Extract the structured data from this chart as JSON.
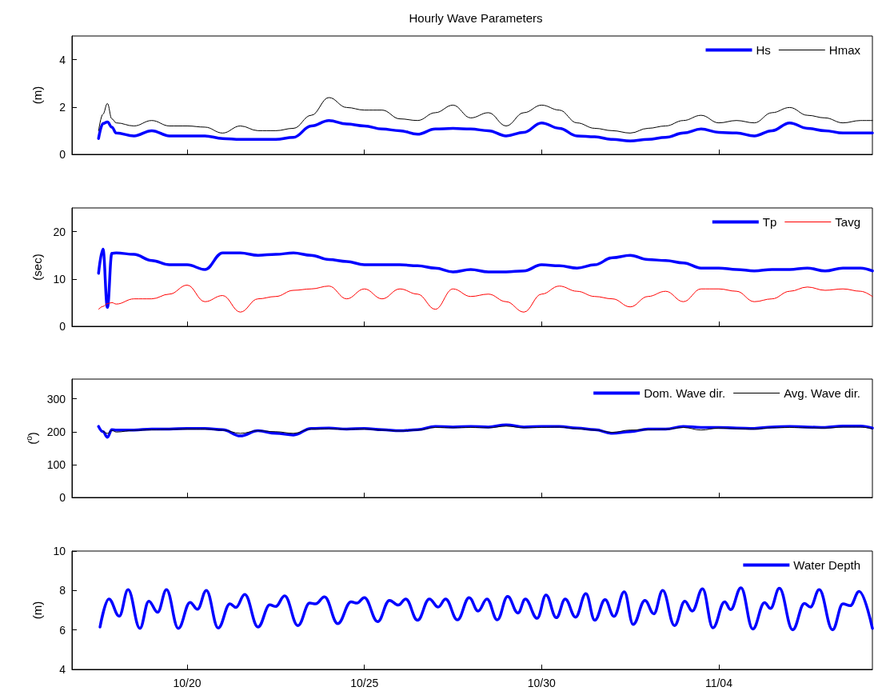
{
  "chart_data": [
    {
      "type": "line",
      "title": "Hourly Wave Parameters",
      "ylabel": "(m)",
      "legend": "top right",
      "tick_labels": "y",
      "xlim": [
        "--10-16T18:00",
        "--11-08T08:00"
      ],
      "xticks": [
        {
          "value": "--10-20",
          "label": "10/20"
        },
        {
          "value": "--10-25",
          "label": "10/25"
        },
        {
          "value": "--10-30",
          "label": "10/30"
        },
        {
          "value": "--11-04",
          "label": "11/04"
        }
      ],
      "ylim": [
        0,
        5
      ],
      "yticks": [
        0,
        2,
        4
      ],
      "x": [
        "--10-17T12:00",
        "--10-17T15:00",
        "--10-17T18:00",
        "--10-17T21:00",
        "--10-18T00:00",
        "--10-18T12:00",
        "--10-19T00:00",
        "--10-19T12:00",
        "--10-20T00:00",
        "--10-20T12:00",
        "--10-21T00:00",
        "--10-21T12:00",
        "--10-22T00:00",
        "--10-22T12:00",
        "--10-23T00:00",
        "--10-23T12:00",
        "--10-24T00:00",
        "--10-24T12:00",
        "--10-25T00:00",
        "--10-25T12:00",
        "--10-26T00:00",
        "--10-26T12:00",
        "--10-27T00:00",
        "--10-27T12:00",
        "--10-28T00:00",
        "--10-28T12:00",
        "--10-29T00:00",
        "--10-29T12:00",
        "--10-30T00:00",
        "--10-30T12:00",
        "--10-31T00:00",
        "--10-31T12:00",
        "--11-01T00:00",
        "--11-01T12:00",
        "--11-02T00:00",
        "--11-02T12:00",
        "--11-03T00:00",
        "--11-03T12:00",
        "--11-04T00:00",
        "--11-04T12:00",
        "--11-05T00:00",
        "--11-05T12:00",
        "--11-06T00:00",
        "--11-06T12:00",
        "--11-07T00:00",
        "--11-07T12:00",
        "--11-08T00:00",
        "--11-08T08:00"
      ],
      "series": [
        {
          "name": "Hs",
          "color": "#0000ff",
          "values": [
            0.67,
            1.3,
            1.37,
            1.15,
            0.9,
            0.78,
            1.0,
            0.78,
            0.78,
            0.78,
            0.67,
            0.63,
            0.63,
            0.63,
            0.72,
            1.2,
            1.43,
            1.28,
            1.2,
            1.07,
            1.0,
            0.85,
            1.07,
            1.1,
            1.07,
            1.0,
            0.78,
            0.93,
            1.33,
            1.1,
            0.78,
            0.74,
            0.63,
            0.57,
            0.63,
            0.72,
            0.9,
            1.07,
            0.93,
            0.9,
            0.78,
            1.0,
            1.33,
            1.1,
            1.0,
            0.9,
            0.9,
            0.9
          ]
        },
        {
          "name": "Hmax",
          "color": "#000000",
          "values": [
            1.0,
            1.7,
            2.15,
            1.5,
            1.33,
            1.2,
            1.43,
            1.2,
            1.2,
            1.15,
            0.9,
            1.2,
            1.0,
            1.0,
            1.1,
            1.65,
            2.4,
            1.98,
            1.87,
            1.87,
            1.5,
            1.43,
            1.76,
            2.08,
            1.54,
            1.76,
            1.2,
            1.76,
            2.08,
            1.87,
            1.33,
            1.1,
            1.0,
            0.9,
            1.1,
            1.2,
            1.43,
            1.65,
            1.33,
            1.43,
            1.33,
            1.76,
            1.98,
            1.65,
            1.54,
            1.33,
            1.43,
            1.43
          ]
        }
      ]
    },
    {
      "type": "line",
      "ylabel": "(sec)",
      "legend": "top right",
      "tick_labels": "y",
      "xlim": [
        "--10-16T18:00",
        "--11-08T08:00"
      ],
      "xticks": [
        {
          "value": "--10-20",
          "label": "10/20"
        },
        {
          "value": "--10-25",
          "label": "10/25"
        },
        {
          "value": "--10-30",
          "label": "10/30"
        },
        {
          "value": "--11-04",
          "label": "11/04"
        }
      ],
      "ylim": [
        0,
        25
      ],
      "yticks": [
        0,
        10,
        20
      ],
      "x": [
        "--10-17T12:00",
        "--10-17T15:00",
        "--10-17T18:00",
        "--10-17T21:00",
        "--10-18T00:00",
        "--10-18T12:00",
        "--10-19T00:00",
        "--10-19T12:00",
        "--10-20T00:00",
        "--10-20T12:00",
        "--10-21T00:00",
        "--10-21T12:00",
        "--10-22T00:00",
        "--10-22T12:00",
        "--10-23T00:00",
        "--10-23T12:00",
        "--10-24T00:00",
        "--10-24T12:00",
        "--10-25T00:00",
        "--10-25T12:00",
        "--10-26T00:00",
        "--10-26T12:00",
        "--10-27T00:00",
        "--10-27T12:00",
        "--10-28T00:00",
        "--10-28T12:00",
        "--10-29T00:00",
        "--10-29T12:00",
        "--10-30T00:00",
        "--10-30T12:00",
        "--10-31T00:00",
        "--10-31T12:00",
        "--11-01T00:00",
        "--11-01T12:00",
        "--11-02T00:00",
        "--11-02T12:00",
        "--11-03T00:00",
        "--11-03T12:00",
        "--11-04T00:00",
        "--11-04T12:00",
        "--11-05T00:00",
        "--11-05T12:00",
        "--11-06T00:00",
        "--11-06T12:00",
        "--11-07T00:00",
        "--11-07T12:00",
        "--11-08T00:00",
        "--11-08T08:00"
      ],
      "series": [
        {
          "name": "Tp",
          "color": "#0000ff",
          "values": [
            11.2,
            16.3,
            4.0,
            15.4,
            15.5,
            15.2,
            13.9,
            13.0,
            13.0,
            12.0,
            15.5,
            15.5,
            15.0,
            15.2,
            15.5,
            15.0,
            14.1,
            13.7,
            13.0,
            13.0,
            13.0,
            12.8,
            12.3,
            11.5,
            12.0,
            11.5,
            11.5,
            11.7,
            13.0,
            12.8,
            12.3,
            13.0,
            14.5,
            15.0,
            14.1,
            13.9,
            13.4,
            12.3,
            12.3,
            12.0,
            11.7,
            12.0,
            12.0,
            12.3,
            11.7,
            12.3,
            12.3,
            11.7
          ]
        },
        {
          "name": "Tavg",
          "color": "#ff0000",
          "values": [
            3.6,
            4.2,
            4.8,
            5.0,
            4.7,
            5.8,
            5.8,
            6.8,
            8.7,
            5.2,
            6.5,
            3.0,
            5.8,
            6.3,
            7.6,
            7.9,
            8.5,
            5.8,
            7.9,
            5.8,
            7.9,
            6.8,
            3.6,
            7.9,
            6.3,
            6.8,
            5.2,
            3.0,
            6.8,
            8.5,
            7.4,
            6.3,
            5.8,
            4.1,
            6.3,
            7.4,
            5.2,
            7.9,
            7.9,
            7.4,
            5.2,
            5.8,
            7.4,
            8.3,
            7.6,
            7.9,
            7.4,
            6.3
          ]
        }
      ]
    },
    {
      "type": "line",
      "ylabel": "($^{o}$)",
      "legend": "top right",
      "tick_labels": "y",
      "xlim": [
        "--10-16T18:00",
        "--11-08T08:00"
      ],
      "xticks": [
        {
          "value": "--10-20",
          "label": "10/20"
        },
        {
          "value": "--10-25",
          "label": "10/25"
        },
        {
          "value": "--10-30",
          "label": "10/30"
        },
        {
          "value": "--11-04",
          "label": "11/04"
        }
      ],
      "ylim": [
        0,
        360
      ],
      "yticks": [
        0,
        100,
        200,
        300
      ],
      "x": [
        "--10-17T12:00",
        "--10-17T15:00",
        "--10-17T18:00",
        "--10-17T21:00",
        "--10-18T00:00",
        "--10-18T12:00",
        "--10-19T00:00",
        "--10-19T12:00",
        "--10-20T00:00",
        "--10-20T12:00",
        "--10-21T00:00",
        "--10-21T12:00",
        "--10-22T00:00",
        "--10-22T12:00",
        "--10-23T00:00",
        "--10-23T12:00",
        "--10-24T00:00",
        "--10-24T12:00",
        "--10-25T00:00",
        "--10-25T12:00",
        "--10-26T00:00",
        "--10-26T12:00",
        "--10-27T00:00",
        "--10-27T12:00",
        "--10-28T00:00",
        "--10-28T12:00",
        "--10-29T00:00",
        "--10-29T12:00",
        "--10-30T00:00",
        "--10-30T12:00",
        "--10-31T00:00",
        "--10-31T12:00",
        "--11-01T00:00",
        "--11-01T12:00",
        "--11-02T00:00",
        "--11-02T12:00",
        "--11-03T00:00",
        "--11-03T12:00",
        "--11-04T00:00",
        "--11-04T12:00",
        "--11-05T00:00",
        "--11-05T12:00",
        "--11-06T00:00",
        "--11-06T12:00",
        "--11-07T00:00",
        "--11-07T12:00",
        "--11-08T00:00",
        "--11-08T08:00"
      ],
      "series": [
        {
          "name": "Dom. Wave dir.",
          "color": "#0000ff",
          "values": [
            216,
            200,
            183,
            206,
            205,
            205,
            208,
            208,
            210,
            210,
            206,
            187,
            203,
            195,
            190,
            210,
            211,
            208,
            210,
            206,
            203,
            206,
            216,
            214,
            216,
            214,
            221,
            214,
            216,
            216,
            211,
            206,
            195,
            200,
            208,
            208,
            216,
            213,
            213,
            211,
            210,
            214,
            216,
            214,
            213,
            217,
            217,
            211
          ]
        },
        {
          "name": "Avg. Wave dir.",
          "color": "#000000",
          "values": [
            null,
            202,
            195,
            204,
            199,
            204,
            206,
            207,
            208,
            208,
            205,
            195,
            203,
            200,
            195,
            208,
            209,
            207,
            208,
            205,
            202,
            205,
            213,
            212,
            213,
            212,
            217,
            212,
            213,
            214,
            209,
            205,
            198,
            205,
            206,
            207,
            213,
            205,
            211,
            209,
            208,
            212,
            213,
            212,
            211,
            214,
            214,
            209
          ]
        }
      ]
    },
    {
      "type": "line",
      "ylabel": "(m)",
      "legend": "top right",
      "xlim": [
        "--10-16T18:00",
        "--11-08T08:00"
      ],
      "xticks": [
        {
          "value": "--10-20",
          "label": "10/20"
        },
        {
          "value": "--10-25",
          "label": "10/25"
        },
        {
          "value": "--10-30",
          "label": "10/30"
        },
        {
          "value": "--11-04",
          "label": "11/04"
        }
      ],
      "ylim": [
        4,
        10
      ],
      "yticks": [
        4,
        6,
        8,
        10
      ],
      "x": [
        "--10-17T13:00",
        "--10-17T19:00",
        "--10-18T02:00",
        "--10-18T08:00",
        "--10-18T16:00",
        "--10-18T22:00",
        "--10-19T04:00",
        "--10-19T10:00",
        "--10-19T18:00",
        "--10-20T02:00",
        "--10-20T07:00",
        "--10-20T13:00",
        "--10-20T21:00",
        "--10-21T05:00",
        "--10-21T09:00",
        "--10-21T15:00",
        "--10-22T00:00",
        "--10-22T08:00",
        "--10-22T12:00",
        "--10-22T18:00",
        "--10-23T03:00",
        "--10-23T11:00",
        "--10-23T15:00",
        "--10-23T21:00",
        "--10-24T06:00",
        "--10-24T15:00",
        "--10-24T19:00",
        "--10-25T00:00",
        "--10-25T09:00",
        "--10-25T17:00",
        "--10-25T23:00",
        "--10-26T04:00",
        "--10-26T12:00",
        "--10-26T20:00",
        "--10-27T02:00",
        "--10-27T07:00",
        "--10-27T15:00",
        "--10-27T23:00",
        "--10-28T05:00",
        "--10-28T11:00",
        "--10-28T18:00",
        "--10-29T01:00",
        "--10-29T08:00",
        "--10-29T13:00",
        "--10-29T21:00",
        "--10-30T03:00",
        "--10-30T10:00",
        "--10-30T16:00",
        "--10-30T23:00",
        "--10-31T06:00",
        "--10-31T12:00",
        "--10-31T19:00",
        "--11-01T01:00",
        "--11-01T08:00",
        "--11-01T14:00",
        "--11-01T22:00",
        "--11-02T04:00",
        "--11-02T10:00",
        "--11-02T18:00",
        "--11-03T01:00",
        "--11-03T06:00",
        "--11-03T13:00",
        "--11-03T20:00",
        "--11-04T04:00",
        "--11-04T08:00",
        "--11-04T15:00",
        "--11-04T23:00",
        "--11-05T07:00",
        "--11-05T11:00",
        "--11-05T17:00",
        "--11-06T02:00",
        "--11-06T10:00",
        "--11-06T14:00",
        "--11-06T20:00",
        "--11-07T05:00",
        "--11-07T12:00",
        "--11-07T17:00",
        "--11-07T23:00",
        "--11-08T08:00"
      ],
      "series": [
        {
          "name": "Water Depth",
          "color": "#0000ff",
          "values": [
            6.15,
            7.57,
            6.7,
            8.04,
            6.08,
            7.46,
            6.9,
            8.04,
            6.08,
            7.4,
            7.05,
            8.0,
            6.1,
            7.32,
            7.14,
            7.8,
            6.15,
            7.27,
            7.19,
            7.73,
            6.22,
            7.36,
            7.32,
            7.68,
            6.32,
            7.43,
            7.36,
            7.64,
            6.42,
            7.5,
            7.26,
            7.57,
            6.49,
            7.57,
            7.16,
            7.57,
            6.51,
            7.64,
            6.96,
            7.57,
            6.51,
            7.7,
            6.86,
            7.57,
            6.59,
            7.77,
            6.62,
            7.57,
            6.65,
            7.84,
            6.49,
            7.54,
            6.69,
            7.93,
            6.28,
            7.5,
            6.82,
            8.0,
            6.22,
            7.46,
            6.96,
            8.08,
            6.11,
            7.43,
            7.03,
            8.14,
            6.05,
            7.39,
            7.09,
            8.11,
            6.01,
            7.34,
            7.16,
            8.04,
            6.01,
            7.32,
            7.23,
            7.95,
            6.08
          ]
        }
      ]
    }
  ]
}
